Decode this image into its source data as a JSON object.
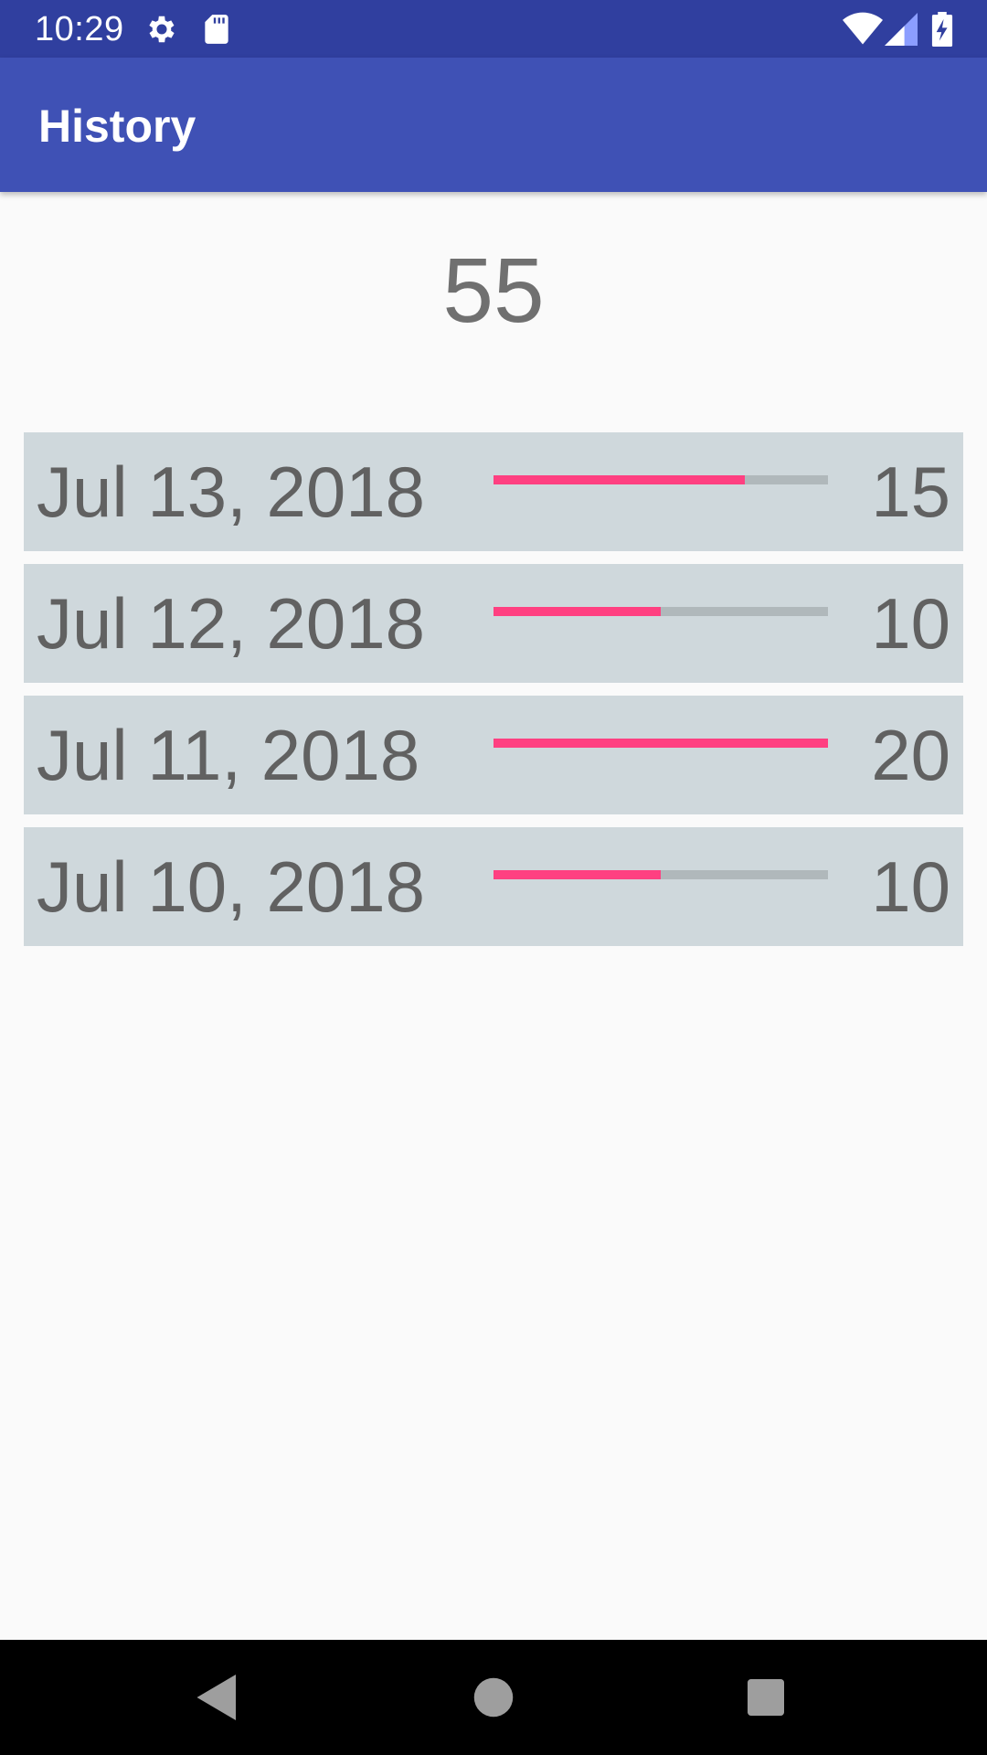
{
  "status_bar": {
    "time": "10:29",
    "icons": [
      "gear-icon",
      "sd-card-icon",
      "wifi-icon",
      "cell-signal-icon",
      "battery-charging-icon"
    ]
  },
  "app_bar": {
    "title": "History"
  },
  "total": "55",
  "history": [
    {
      "date": "Jul 13, 2018",
      "count": "15",
      "progress": 0.75
    },
    {
      "date": "Jul 12, 2018",
      "count": "10",
      "progress": 0.5
    },
    {
      "date": "Jul 11, 2018",
      "count": "20",
      "progress": 1.0
    },
    {
      "date": "Jul 10, 2018",
      "count": "10",
      "progress": 0.5
    }
  ],
  "colors": {
    "status_bar": "#303f9f",
    "app_bar": "#3f51b5",
    "row_background": "#cfd8dc",
    "progress_fill": "#ff4081",
    "progress_track": "#b0b8bb",
    "text": "#616161"
  },
  "nav_bar": {
    "icons": [
      "back-icon",
      "home-icon",
      "recents-icon"
    ]
  }
}
